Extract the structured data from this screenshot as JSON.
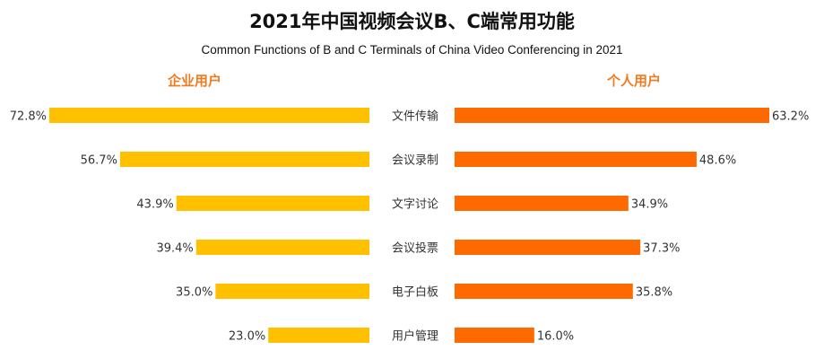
{
  "title": "2021年中国视频会议B、C端常用功能",
  "subtitle": "Common Functions of B and C Terminals of China Video Conferencing in 2021",
  "chart_data": {
    "type": "bar",
    "orientation": "horizontal",
    "categories": [
      "文件传输",
      "会议录制",
      "文字讨论",
      "会议投票",
      "电子白板",
      "用户管理"
    ],
    "series": [
      {
        "name": "企业用户",
        "values": [
          72.8,
          56.7,
          43.9,
          39.4,
          35.0,
          23.0
        ],
        "color": "#ffc000"
      },
      {
        "name": "个人用户",
        "values": [
          63.2,
          48.6,
          34.9,
          37.3,
          35.8,
          16.0
        ],
        "color": "#ff6a00"
      }
    ],
    "value_labels": {
      "left": [
        "72.8%",
        "56.7%",
        "43.9%",
        "39.4%",
        "35.0%",
        "23.0%"
      ],
      "right": [
        "63.2%",
        "48.6%",
        "34.9%",
        "37.3%",
        "35.8%",
        "16.0%"
      ]
    },
    "layout": "butterfly (left series grows leftward, right series grows rightward, shared category labels in middle)",
    "grid": false
  }
}
